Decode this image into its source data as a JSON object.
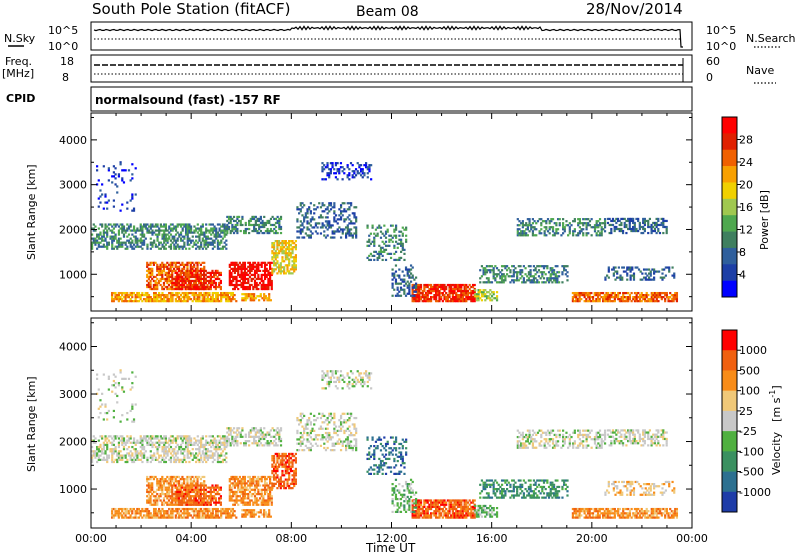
{
  "header": {
    "title": "South Pole Station (fitACF)",
    "beam": "Beam 08",
    "date": "28/Nov/2014"
  },
  "noise_panel": {
    "left_label": "N.Sky",
    "right_label": "N.Search",
    "left_ticks": [
      "10^5",
      "10^0"
    ],
    "right_ticks": [
      "10^5",
      "10^0"
    ]
  },
  "freq_panel": {
    "left_label_1": "Freq.",
    "left_label_2": "[MHz]",
    "right_label": "Nave",
    "left_ticks": [
      "18",
      "8"
    ],
    "right_ticks": [
      "60",
      "0"
    ]
  },
  "cpid": {
    "label": "CPID",
    "value": "normalsound (fast) -157 RF"
  },
  "chart_data": [
    {
      "type": "heatmap",
      "name": "power",
      "ylabel": "Slant Range [km]",
      "xlabel": "",
      "ylim": [
        180,
        4600
      ],
      "xlim": [
        0,
        24
      ],
      "x_ticks": [
        0,
        4,
        8,
        12,
        16,
        20,
        24
      ],
      "y_ticks": [
        1000,
        2000,
        3000,
        4000
      ],
      "colorbar": {
        "label": "Power [dB]",
        "ticks": [
          "4",
          "8",
          "12",
          "16",
          "20",
          "24",
          "28"
        ],
        "colors": [
          "#0000ff",
          "#1d3fa6",
          "#2f5f9c",
          "#3f7f5f",
          "#4fa84f",
          "#a0c850",
          "#f0d000",
          "#f8a000",
          "#f06000",
          "#e02000",
          "#ff0000"
        ]
      }
    },
    {
      "type": "heatmap",
      "name": "velocity",
      "ylabel": "Slant Range [km]",
      "xlabel": "Time UT",
      "ylim": [
        180,
        4600
      ],
      "xlim": [
        0,
        24
      ],
      "x_ticks": [
        0,
        4,
        8,
        12,
        16,
        20,
        24
      ],
      "x_tick_labels": [
        "00:00",
        "04:00",
        "08:00",
        "12:00",
        "16:00",
        "20:00",
        "00:00"
      ],
      "y_ticks": [
        1000,
        2000,
        3000,
        4000
      ],
      "colorbar": {
        "label_main": "Velocity",
        "label_unit": "[m s",
        "label_sup": "-1",
        "label_close": "]",
        "ticks": [
          "1000",
          "500",
          "100",
          "25",
          "-25",
          "-100",
          "-500",
          "-1000"
        ],
        "colors": [
          "#1e3ca8",
          "#2c7090",
          "#3a9060",
          "#50b040",
          "#c8c8c8",
          "#f0c878",
          "#f88c18",
          "#f06010",
          "#ff0000"
        ]
      }
    }
  ]
}
